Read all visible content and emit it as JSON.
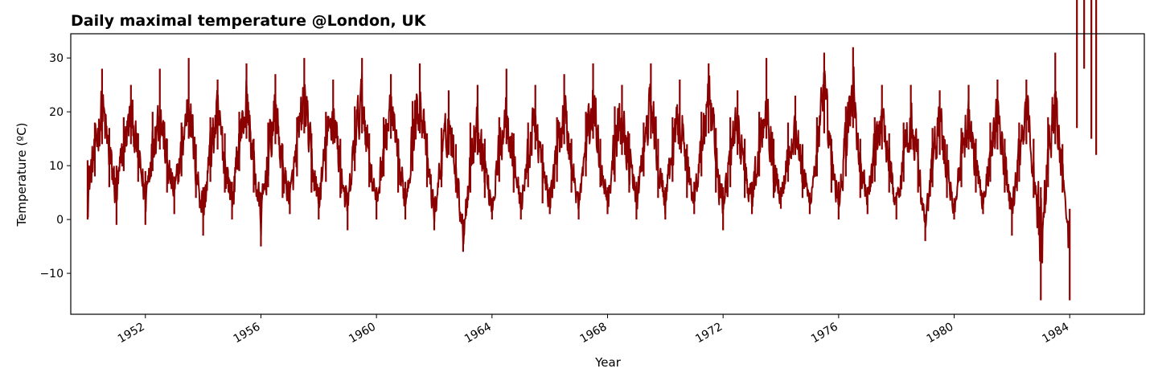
{
  "chart_data": {
    "type": "line",
    "title": "Daily maximal temperature @London, UK",
    "xlabel": "Year",
    "ylabel": "Temperature (ºC)",
    "x_range": [
      "1949-06-01",
      "1986-08-01"
    ],
    "y_range": [
      -17.6,
      34.5
    ],
    "x_ticks": [
      {
        "label": "1952",
        "year": 1952
      },
      {
        "label": "1956",
        "year": 1956
      },
      {
        "label": "1960",
        "year": 1960
      },
      {
        "label": "1964",
        "year": 1964
      },
      {
        "label": "1968",
        "year": 1968
      },
      {
        "label": "1972",
        "year": 1972
      },
      {
        "label": "1976",
        "year": 1976
      },
      {
        "label": "1980",
        "year": 1980
      },
      {
        "label": "1984",
        "year": 1984
      }
    ],
    "y_ticks": [
      {
        "label": "−10",
        "value": -10
      },
      {
        "label": "0",
        "value": 0
      },
      {
        "label": "10",
        "value": 10
      },
      {
        "label": "20",
        "value": 20
      },
      {
        "label": "30",
        "value": 30
      }
    ],
    "grid": false,
    "legend": "none",
    "line_color": "#8b0000",
    "series": [
      {
        "x": [
          "1950-01",
          "1950-04",
          "1950-07",
          "1950-10",
          "1951-01",
          "1951-04",
          "1951-07",
          "1951-10",
          "1952-01",
          "1952-04",
          "1952-07",
          "1952-10",
          "1953-01",
          "1953-04",
          "1953-07",
          "1953-10",
          "1954-01",
          "1954-04",
          "1954-07",
          "1954-10",
          "1955-01",
          "1955-04",
          "1955-07",
          "1955-10",
          "1956-01",
          "1956-04",
          "1956-07",
          "1956-10",
          "1957-01",
          "1957-04",
          "1957-07",
          "1957-10",
          "1958-01",
          "1958-04",
          "1958-07",
          "1958-10",
          "1959-01",
          "1959-04",
          "1959-07",
          "1959-10",
          "1960-01",
          "1960-04",
          "1960-07",
          "1960-10",
          "1961-01",
          "1961-04",
          "1961-07",
          "1961-10",
          "1962-01",
          "1962-04",
          "1962-07",
          "1962-10",
          "1963-01",
          "1963-04",
          "1963-07",
          "1963-10",
          "1964-01",
          "1964-04",
          "1964-07",
          "1964-10",
          "1965-01",
          "1965-04",
          "1965-07",
          "1965-10",
          "1966-01",
          "1966-04",
          "1966-07",
          "1966-10",
          "1967-01",
          "1967-04",
          "1967-07",
          "1967-10",
          "1968-01",
          "1968-04",
          "1968-07",
          "1968-10",
          "1969-01",
          "1969-04",
          "1969-07",
          "1969-10",
          "1970-01",
          "1970-04",
          "1970-07",
          "1970-10",
          "1971-01",
          "1971-04",
          "1971-07",
          "1971-10",
          "1972-01",
          "1972-04",
          "1972-07",
          "1972-10",
          "1973-01",
          "1973-04",
          "1973-07",
          "1973-10",
          "1974-01",
          "1974-04",
          "1974-07",
          "1974-10",
          "1975-01",
          "1975-04",
          "1975-07",
          "1975-10",
          "1976-01",
          "1976-04",
          "1976-07",
          "1976-10",
          "1977-01",
          "1977-04",
          "1977-07",
          "1977-10",
          "1978-01",
          "1978-04",
          "1978-07",
          "1978-10",
          "1979-01",
          "1979-04",
          "1979-07",
          "1979-10",
          "1980-01",
          "1980-04",
          "1980-07",
          "1980-10",
          "1981-01",
          "1981-04",
          "1981-07",
          "1981-10",
          "1982-01",
          "1982-04",
          "1982-07",
          "1982-10",
          "1983-01",
          "1983-04",
          "1983-07",
          "1983-10",
          "1984-01",
          "1984-04",
          "1984-07",
          "1984-10",
          "1984-12"
        ],
        "max": [
          11,
          18,
          28,
          17,
          10,
          19,
          25,
          16,
          9,
          20,
          28,
          15,
          8,
          18,
          30,
          14,
          6,
          19,
          26,
          16,
          7,
          20,
          29,
          15,
          5,
          18,
          27,
          14,
          7,
          19,
          30,
          16,
          6,
          20,
          26,
          15,
          5,
          21,
          30,
          16,
          6,
          19,
          27,
          15,
          7,
          22,
          29,
          16,
          4,
          17,
          24,
          14,
          0,
          18,
          25,
          15,
          4,
          19,
          28,
          16,
          5,
          18,
          25,
          14,
          6,
          19,
          27,
          15,
          5,
          20,
          29,
          15,
          6,
          21,
          25,
          16,
          7,
          18,
          29,
          15,
          6,
          19,
          26,
          14,
          7,
          20,
          29,
          17,
          6,
          19,
          24,
          15,
          7,
          20,
          30,
          15,
          6,
          18,
          23,
          14,
          5,
          19,
          31,
          15,
          7,
          21,
          32,
          15,
          6,
          19,
          25,
          16,
          5,
          18,
          25,
          15,
          1,
          17,
          24,
          14,
          4,
          17,
          25,
          15,
          5,
          18,
          26,
          15,
          4,
          18,
          26,
          15,
          6,
          19,
          31,
          14,
          -15,
          17,
          28,
          15,
          12
        ],
        "min": [
          0,
          8,
          14,
          6,
          -1,
          9,
          14,
          7,
          -1,
          9,
          13,
          5,
          1,
          8,
          15,
          4,
          -3,
          7,
          13,
          5,
          0,
          9,
          15,
          5,
          -5,
          6,
          14,
          4,
          1,
          8,
          16,
          5,
          0,
          7,
          14,
          4,
          -2,
          9,
          16,
          6,
          0,
          8,
          15,
          5,
          0,
          9,
          16,
          6,
          -2,
          6,
          12,
          5,
          -6,
          5,
          12,
          4,
          0,
          7,
          14,
          5,
          0,
          6,
          13,
          3,
          1,
          7,
          14,
          5,
          0,
          8,
          15,
          6,
          1,
          7,
          12,
          5,
          0,
          8,
          15,
          4,
          0,
          7,
          13,
          4,
          1,
          8,
          16,
          5,
          -2,
          6,
          12,
          4,
          1,
          8,
          15,
          4,
          2,
          7,
          12,
          4,
          1,
          8,
          16,
          5,
          0,
          8,
          17,
          4,
          1,
          7,
          13,
          5,
          0,
          7,
          13,
          5,
          -4,
          6,
          12,
          4,
          0,
          6,
          13,
          5,
          1,
          7,
          13,
          5,
          -3,
          7,
          14,
          4,
          -15,
          6,
          14,
          5,
          2
        ]
      }
    ]
  }
}
